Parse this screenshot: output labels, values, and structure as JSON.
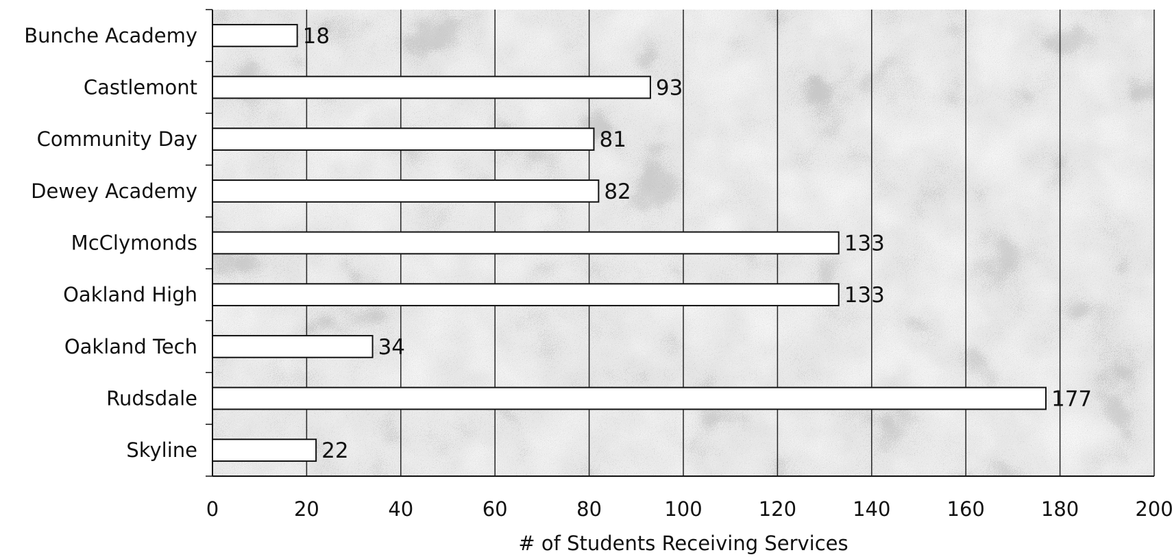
{
  "chart_data": {
    "type": "bar",
    "orientation": "horizontal",
    "categories": [
      "Bunche Academy",
      "Castlemont",
      "Community Day",
      "Dewey Academy",
      "McClymonds",
      "Oakland High",
      "Oakland Tech",
      "Rudsdale",
      "Skyline"
    ],
    "values": [
      18,
      93,
      81,
      82,
      133,
      133,
      34,
      177,
      22
    ],
    "xlabel": "# of Students Receiving Services",
    "ylabel": "",
    "xlim": [
      0,
      200
    ],
    "x_ticks": [
      0,
      20,
      40,
      60,
      80,
      100,
      120,
      140,
      160,
      180,
      200
    ],
    "grid": "vertical",
    "data_labels": true,
    "colors": {
      "bar_fill": "#ffffff",
      "bar_stroke": "#111111",
      "plot_background": "#c9c9c9",
      "gridline": "#222222"
    }
  }
}
